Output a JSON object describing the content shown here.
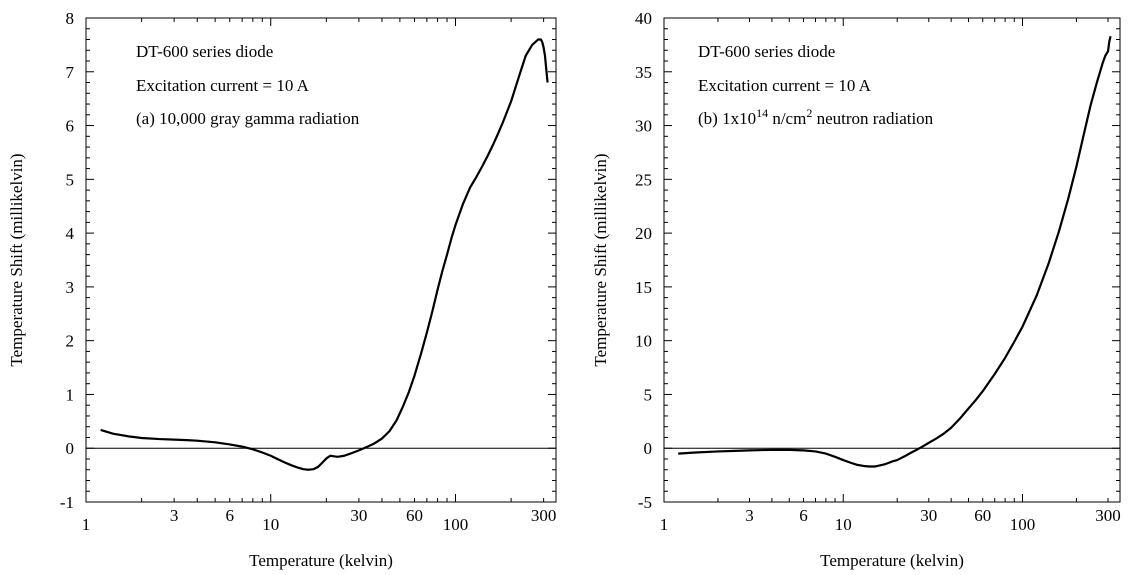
{
  "chart_data": [
    {
      "type": "line",
      "xlabel": "Temperature (kelvin)",
      "ylabel": "Temperature Shift (millikelvin)",
      "x_scale": "log",
      "xlim": [
        1,
        350
      ],
      "ylim": [
        -1,
        8
      ],
      "x_ticks_labeled": [
        1,
        3,
        6,
        10,
        30,
        60,
        100,
        300
      ],
      "y_ticks": [
        -1,
        0,
        1,
        2,
        3,
        4,
        5,
        6,
        7,
        8
      ],
      "annotations": [
        "DT-600 series diode",
        "Excitation current = 10   A",
        "(a) 10,000 gray gamma radiation"
      ],
      "reference_line_y": 0,
      "series": [
        {
          "x": [
            1.2,
            1.4,
            1.7,
            2,
            2.5,
            3,
            3.5,
            4,
            5,
            6,
            7,
            8,
            9,
            10,
            11,
            12,
            13,
            14,
            15,
            16,
            17,
            18,
            19,
            20,
            21,
            22,
            23,
            25,
            27,
            30,
            33,
            36,
            40,
            44,
            48,
            52,
            56,
            60,
            65,
            70,
            75,
            80,
            85,
            90,
            95,
            100,
            110,
            120,
            130,
            140,
            150,
            160,
            170,
            180,
            200,
            220,
            240,
            260,
            280,
            290,
            295,
            300,
            305,
            310,
            315
          ],
          "y": [
            0.34,
            0.27,
            0.22,
            0.19,
            0.17,
            0.16,
            0.15,
            0.14,
            0.11,
            0.07,
            0.03,
            -0.02,
            -0.08,
            -0.14,
            -0.21,
            -0.27,
            -0.32,
            -0.36,
            -0.39,
            -0.4,
            -0.39,
            -0.35,
            -0.27,
            -0.19,
            -0.14,
            -0.15,
            -0.16,
            -0.14,
            -0.1,
            -0.04,
            0.02,
            0.08,
            0.18,
            0.32,
            0.52,
            0.78,
            1.05,
            1.35,
            1.75,
            2.15,
            2.55,
            2.95,
            3.3,
            3.6,
            3.9,
            4.15,
            4.55,
            4.85,
            5.05,
            5.25,
            5.45,
            5.65,
            5.85,
            6.05,
            6.45,
            6.9,
            7.3,
            7.5,
            7.6,
            7.6,
            7.55,
            7.45,
            7.3,
            7.05,
            6.8
          ]
        }
      ]
    },
    {
      "type": "line",
      "xlabel": "Temperature (kelvin)",
      "ylabel": "Temperature Shift (millikelvin)",
      "x_scale": "log",
      "xlim": [
        1,
        350
      ],
      "ylim": [
        -5,
        40
      ],
      "x_ticks_labeled": [
        1,
        3,
        6,
        10,
        30,
        60,
        100,
        300
      ],
      "y_ticks": [
        -5,
        0,
        5,
        10,
        15,
        20,
        25,
        30,
        35,
        40
      ],
      "annotations": [
        "DT-600 series diode",
        "Excitation current = 10   A",
        "(b) 1x10",
        "14",
        " n/cm",
        "2",
        " neutron radiation"
      ],
      "reference_line_y": 0,
      "series": [
        {
          "x": [
            1.2,
            1.5,
            2,
            2.5,
            3,
            4,
            5,
            6,
            7,
            8,
            9,
            10,
            11,
            12,
            13,
            14,
            15,
            16,
            17,
            18,
            19,
            20,
            22,
            24,
            26,
            28,
            30,
            33,
            36,
            40,
            45,
            50,
            55,
            60,
            70,
            80,
            90,
            100,
            120,
            140,
            160,
            180,
            200,
            220,
            240,
            260,
            280,
            290,
            300,
            305,
            310
          ],
          "y": [
            -0.5,
            -0.4,
            -0.3,
            -0.25,
            -0.2,
            -0.15,
            -0.15,
            -0.2,
            -0.3,
            -0.5,
            -0.8,
            -1.1,
            -1.35,
            -1.55,
            -1.65,
            -1.7,
            -1.7,
            -1.6,
            -1.5,
            -1.35,
            -1.2,
            -1.1,
            -0.75,
            -0.4,
            -0.1,
            0.2,
            0.5,
            0.9,
            1.3,
            1.9,
            2.8,
            3.7,
            4.5,
            5.3,
            6.9,
            8.4,
            9.9,
            11.3,
            14.2,
            17.2,
            20.2,
            23.2,
            26.2,
            29.2,
            31.9,
            34.0,
            35.8,
            36.5,
            36.9,
            37.8,
            38.3
          ]
        }
      ]
    }
  ]
}
